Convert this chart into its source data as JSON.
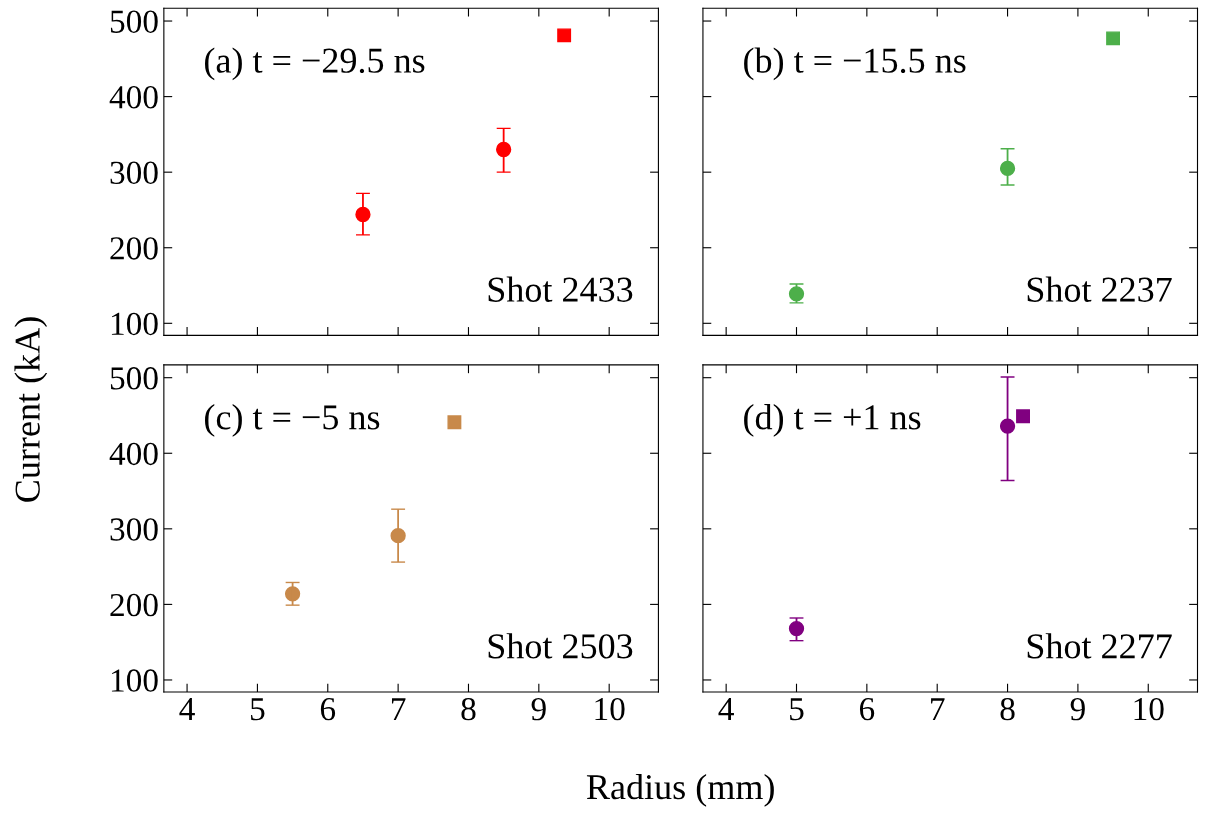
{
  "chart_data": [
    {
      "type": "scatter",
      "ylabel": "Current (kA)",
      "annotations": [
        "(a) t = −29.5 ns",
        "Shot 2433"
      ],
      "xlim": [
        3.67,
        10.7
      ],
      "ylim": [
        84,
        517
      ],
      "xticks": [
        4,
        5,
        6,
        7,
        8,
        9,
        10
      ],
      "yticks": [
        100,
        200,
        300,
        400,
        500
      ],
      "tick_labels": "y",
      "grid": false,
      "legend": false,
      "series": [
        {
          "color": "#ff0000",
          "marker": "circle",
          "x": [
            6.5,
            8.5
          ],
          "values": [
            244,
            330
          ],
          "errors": [
            [
              217,
              272
            ],
            [
              300,
              358
            ]
          ]
        },
        {
          "color": "#ff0000",
          "marker": "square",
          "x": [
            9.36
          ],
          "values": [
            481
          ]
        }
      ]
    },
    {
      "type": "scatter",
      "annotations": [
        "(b) t = −15.5 ns",
        "Shot 2237"
      ],
      "xlim": [
        3.67,
        10.7
      ],
      "ylim": [
        84,
        517
      ],
      "xticks": [
        4,
        5,
        6,
        7,
        8,
        9,
        10
      ],
      "yticks": [
        100,
        200,
        300,
        400,
        500
      ],
      "tick_labels": false,
      "grid": false,
      "legend": false,
      "series": [
        {
          "color": "#4daf4a",
          "marker": "circle",
          "x": [
            5,
            8
          ],
          "values": [
            139,
            305
          ],
          "errors": [
            [
              127,
              152
            ],
            [
              283,
              331
            ]
          ]
        },
        {
          "color": "#4daf4a",
          "marker": "square",
          "x": [
            9.5
          ],
          "values": [
            477
          ]
        }
      ]
    },
    {
      "type": "scatter",
      "xlabel": "Radius (mm)",
      "annotations": [
        "(c) t = −5 ns",
        "Shot 2503"
      ],
      "xlim": [
        3.67,
        10.7
      ],
      "ylim": [
        84,
        517
      ],
      "xticks": [
        4,
        5,
        6,
        7,
        8,
        9,
        10
      ],
      "yticks": [
        100,
        200,
        300,
        400,
        500
      ],
      "grid": false,
      "legend": false,
      "series": [
        {
          "color": "#c8894a",
          "marker": "circle",
          "x": [
            5.5,
            7
          ],
          "values": [
            214,
            291
          ],
          "errors": [
            [
              199,
              229
            ],
            [
              256,
              326
            ]
          ]
        },
        {
          "color": "#c8894a",
          "marker": "square",
          "x": [
            7.8
          ],
          "values": [
            441
          ]
        }
      ]
    },
    {
      "type": "scatter",
      "annotations": [
        "(d) t = +1 ns",
        "Shot 2277"
      ],
      "xlim": [
        3.67,
        10.7
      ],
      "ylim": [
        84,
        517
      ],
      "xticks": [
        4,
        5,
        6,
        7,
        8,
        9,
        10
      ],
      "yticks": [
        100,
        200,
        300,
        400,
        500
      ],
      "tick_labels": "x",
      "grid": false,
      "legend": false,
      "series": [
        {
          "color": "#800080",
          "marker": "circle",
          "x": [
            5,
            8
          ],
          "values": [
            168,
            436
          ],
          "errors": [
            [
              152,
              182
            ],
            [
              364,
              501
            ]
          ]
        },
        {
          "color": "#800080",
          "marker": "square",
          "x": [
            8.22
          ],
          "values": [
            449
          ]
        }
      ]
    }
  ]
}
